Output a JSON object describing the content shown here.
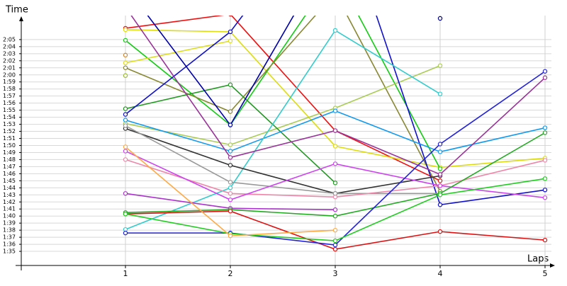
{
  "chart_data": {
    "type": "line",
    "y_label": "Time",
    "x_label": "Laps",
    "x": [
      1,
      2,
      3,
      4,
      5
    ],
    "xlim": [
      -0.0,
      5.06
    ],
    "ylim": [
      93,
      128.4
    ],
    "grid": true,
    "yticks": [
      {
        "value": 95,
        "label": "1:35"
      },
      {
        "value": 96,
        "label": "1:36"
      },
      {
        "value": 97,
        "label": "1:37"
      },
      {
        "value": 98,
        "label": "1:38"
      },
      {
        "value": 99,
        "label": "1:39"
      },
      {
        "value": 100,
        "label": "1:40"
      },
      {
        "value": 101,
        "label": "1:41"
      },
      {
        "value": 102,
        "label": "1:42"
      },
      {
        "value": 103,
        "label": "1:43"
      },
      {
        "value": 104,
        "label": "1:44"
      },
      {
        "value": 105,
        "label": "1:45"
      },
      {
        "value": 106,
        "label": "1:46"
      },
      {
        "value": 107,
        "label": "1:47"
      },
      {
        "value": 108,
        "label": "1:48"
      },
      {
        "value": 109,
        "label": "1:49"
      },
      {
        "value": 110,
        "label": "1:50"
      },
      {
        "value": 111,
        "label": "1:51"
      },
      {
        "value": 112,
        "label": "1:52"
      },
      {
        "value": 113,
        "label": "1:53"
      },
      {
        "value": 114,
        "label": "1:54"
      },
      {
        "value": 115,
        "label": "1:55"
      },
      {
        "value": 116,
        "label": "1:56"
      },
      {
        "value": 117,
        "label": "1:57"
      },
      {
        "value": 118,
        "label": "1:58"
      },
      {
        "value": 119,
        "label": "1:59"
      },
      {
        "value": 120,
        "label": "2:00"
      },
      {
        "value": 121,
        "label": "2:01"
      },
      {
        "value": 122,
        "label": "2:02"
      },
      {
        "value": 123,
        "label": "2:03"
      },
      {
        "value": 124,
        "label": "2:04"
      },
      {
        "value": 125,
        "label": "2:05"
      }
    ],
    "series": [
      {
        "color": "#ee1111",
        "values": [
          126.6,
          128.6,
          112.1,
          105.0,
          null
        ]
      },
      {
        "color": "#dddd11",
        "values": [
          126.4,
          126.1,
          109.9,
          106.9,
          108.2
        ]
      },
      {
        "color": "#11cc11",
        "values": [
          124.9,
          112.9,
          134.6,
          106.7,
          null
        ]
      },
      {
        "color": "#cc8833",
        "values": [
          122.8,
          null,
          null,
          null,
          null
        ]
      },
      {
        "color": "#dddd22",
        "values": [
          121.7,
          124.8,
          null,
          null,
          null
        ]
      },
      {
        "color": "#888833",
        "values": [
          121.0,
          114.8,
          131.6,
          103.5,
          null
        ]
      },
      {
        "color": "#aacc55",
        "values": [
          113.1,
          110.1,
          115.3,
          121.3,
          null
        ]
      },
      {
        "color": "#229922",
        "values": [
          115.2,
          118.6,
          104.7,
          null,
          null
        ]
      },
      {
        "color": "#1111cc",
        "values": [
          114.4,
          126.1,
          145.7,
          101.6,
          103.7
        ]
      },
      {
        "color": "#0000aa",
        "values": [
          132.6,
          112.9,
          138.6,
          null,
          null
        ]
      },
      {
        "color": "#1199ee",
        "values": [
          113.6,
          109.2,
          114.9,
          109.1,
          112.5
        ]
      },
      {
        "color": "#33cccc",
        "values": [
          98.1,
          104.0,
          126.3,
          117.3,
          null
        ]
      },
      {
        "color": "#333333",
        "values": [
          112.4,
          107.2,
          103.2,
          105.7,
          null
        ]
      },
      {
        "color": "#999999",
        "values": [
          112.8,
          104.8,
          103.2,
          103.2,
          null
        ]
      },
      {
        "color": "#993399",
        "values": [
          129.6,
          108.3,
          112.1,
          105.9,
          119.6
        ]
      },
      {
        "color": "#ee88aa",
        "values": [
          108.0,
          103.2,
          102.7,
          104.3,
          107.9
        ]
      },
      {
        "color": "#cc44ee",
        "values": [
          109.2,
          102.3,
          107.4,
          104.3,
          102.6
        ]
      },
      {
        "color": "#aa33cc",
        "values": [
          103.2,
          101.1,
          100.9,
          null,
          null
        ]
      },
      {
        "color": "#22aa22",
        "values": [
          100.5,
          100.9,
          100.0,
          103.2,
          111.8
        ]
      },
      {
        "color": "#dd1111",
        "values": [
          100.3,
          100.7,
          95.3,
          97.8,
          96.6
        ]
      },
      {
        "color": "#2222dd",
        "values": [
          97.6,
          97.6,
          95.9,
          110.2,
          120.5
        ]
      },
      {
        "color": "#22cc22",
        "values": [
          100.3,
          97.5,
          96.5,
          103.0,
          105.3
        ]
      },
      {
        "color": "#ffaa44",
        "values": [
          109.8,
          97.2,
          98.0,
          null,
          null
        ]
      },
      {
        "color": "#99bb33",
        "values": [
          119.9,
          null,
          null,
          null,
          null
        ]
      },
      {
        "color": "#000088",
        "values": [
          null,
          null,
          null,
          128.0,
          null
        ]
      }
    ]
  }
}
